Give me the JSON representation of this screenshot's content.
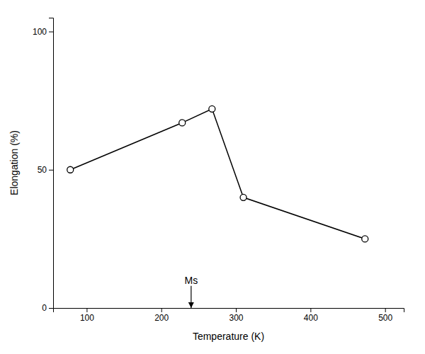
{
  "chart_data": {
    "type": "line",
    "xlabel": "Temperature (K)",
    "ylabel": "Elongation (%)",
    "x": [
      78,
      228,
      268,
      310,
      473
    ],
    "values": [
      50,
      67,
      72,
      40,
      25
    ],
    "color": "#000000",
    "marker": "circle",
    "xlim": [
      55,
      525
    ],
    "ylim": [
      0,
      105
    ],
    "xticks": [
      100,
      200,
      300,
      400,
      500
    ],
    "yticks": [
      0,
      50,
      100
    ],
    "grid": false,
    "annotations": [
      {
        "text": "Ms",
        "x": 240,
        "y": 8,
        "arrow_x": 240,
        "arrow_y": 0
      }
    ]
  }
}
